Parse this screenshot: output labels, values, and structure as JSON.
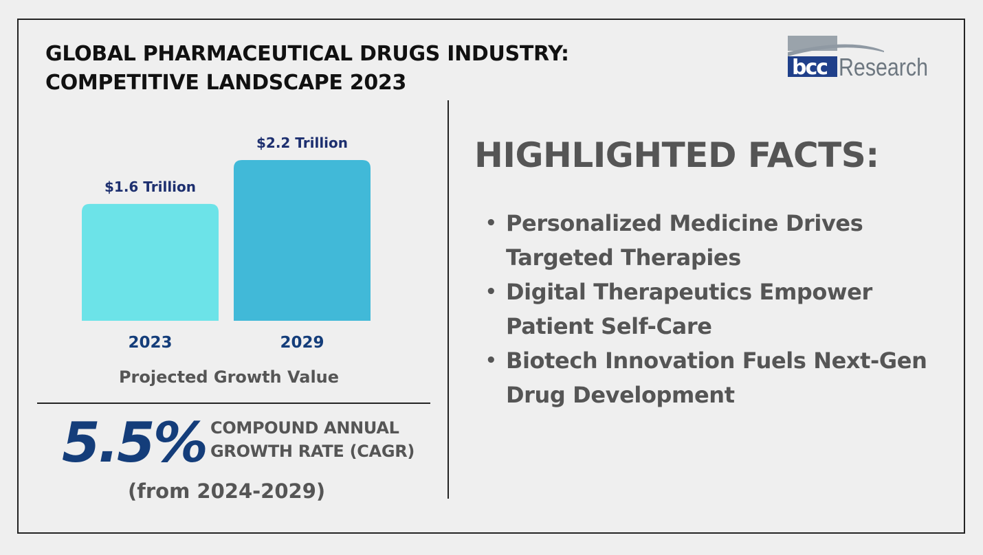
{
  "title": {
    "line1": "GLOBAL PHARMACEUTICAL DRUGS INDUSTRY:",
    "line2": "COMPETITIVE LANDSCAPE 2023"
  },
  "logo": {
    "text_bcc": "bcc",
    "text_research": "Research"
  },
  "chart_data": {
    "type": "bar",
    "categories": [
      "2023",
      "2029"
    ],
    "values": [
      1.6,
      2.2
    ],
    "value_labels": [
      "$1.6 Trillion",
      "$2.2 Trillion"
    ],
    "colors": [
      "#6ce3e8",
      "#41b9d8"
    ],
    "xlabel": "Projected Growth Value",
    "unit": "Trillion USD",
    "grid": false,
    "ylim": [
      0,
      2.2
    ]
  },
  "cagr": {
    "value": "5.5%",
    "label_line1": "COMPOUND ANNUAL",
    "label_line2": "GROWTH RATE (CAGR)",
    "range": "(from 2024-2029)"
  },
  "facts": {
    "heading": "HIGHLIGHTED FACTS:",
    "items": [
      {
        "line1": "Personalized Medicine Drives",
        "line2": "Targeted Therapies"
      },
      {
        "line1": "Digital Therapeutics Empower",
        "line2": "Patient Self-Care"
      },
      {
        "line1": "Biotech Innovation Fuels Next-Gen",
        "line2": "Drug Development"
      }
    ]
  },
  "colors": {
    "background": "#efefef",
    "title": "#111111",
    "accent_dark_blue": "#143d7a",
    "chart_label_blue": "#1d2f6f",
    "gray_text": "#555555"
  }
}
